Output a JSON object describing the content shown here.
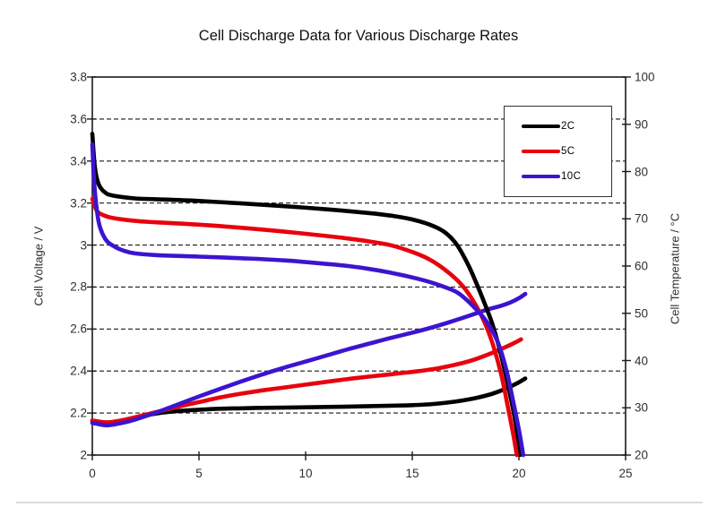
{
  "chart_data": {
    "type": "line",
    "title": "Cell Discharge Data for Various Discharge Rates",
    "grid": "horizontal-dashed",
    "x_axis": {
      "label": "",
      "range": [
        0,
        25
      ],
      "ticks": [
        {
          "label": "0",
          "value": 0
        },
        {
          "label": "5",
          "value": 5
        },
        {
          "label": "10",
          "value": 10
        },
        {
          "label": "15",
          "value": 15
        },
        {
          "label": "20",
          "value": 20
        },
        {
          "label": "25",
          "value": 25
        }
      ]
    },
    "y_left": {
      "label": "Cell Voltage / V",
      "range": [
        2,
        3.8
      ],
      "ticks": [
        {
          "label": "3.8",
          "value": 3.8
        },
        {
          "label": "3.6",
          "value": 3.6
        },
        {
          "label": "3.4",
          "value": 3.4
        },
        {
          "label": "3.2",
          "value": 3.2
        },
        {
          "label": "3",
          "value": 3.0
        },
        {
          "label": "2.8",
          "value": 2.8
        },
        {
          "label": "2.6",
          "value": 2.6
        },
        {
          "label": "2.4",
          "value": 2.4
        },
        {
          "label": "2.2",
          "value": 2.2
        },
        {
          "label": "2",
          "value": 2.0
        }
      ]
    },
    "y_right": {
      "label": "Cell Temperature / °C",
      "range": [
        20,
        100
      ],
      "ticks": [
        {
          "label": "100",
          "value": 100
        },
        {
          "label": "90",
          "value": 90
        },
        {
          "label": "80",
          "value": 80
        },
        {
          "label": "70",
          "value": 70
        },
        {
          "label": "60",
          "value": 60
        },
        {
          "label": "50",
          "value": 50
        },
        {
          "label": "40",
          "value": 40
        },
        {
          "label": "30",
          "value": 30
        },
        {
          "label": "20",
          "value": 20
        }
      ]
    },
    "legend": {
      "position": "top-right",
      "entries": [
        {
          "label": "2C",
          "color": "#000000"
        },
        {
          "label": "5C",
          "color": "#e8000d"
        },
        {
          "label": "10C",
          "color": "#3c14d0"
        }
      ]
    },
    "series": [
      {
        "name": "2C temperature",
        "axis": "right",
        "color": "#000000",
        "points": [
          [
            0,
            27.3
          ],
          [
            0.6,
            26.9
          ],
          [
            1.2,
            27.1
          ],
          [
            2,
            27.9
          ],
          [
            3,
            28.8
          ],
          [
            4,
            29.3
          ],
          [
            5,
            29.6
          ],
          [
            6,
            29.8
          ],
          [
            7,
            29.9
          ],
          [
            8,
            30
          ],
          [
            10,
            30.1
          ],
          [
            12,
            30.25
          ],
          [
            14,
            30.45
          ],
          [
            15,
            30.55
          ],
          [
            16,
            30.8
          ],
          [
            17,
            31.3
          ],
          [
            18,
            32.1
          ],
          [
            18.7,
            32.9
          ],
          [
            19.2,
            33.7
          ],
          [
            19.6,
            34.5
          ],
          [
            20,
            35.4
          ],
          [
            20.3,
            36.2
          ]
        ]
      },
      {
        "name": "5C temperature",
        "axis": "right",
        "color": "#e8000d",
        "points": [
          [
            0,
            27.3
          ],
          [
            0.6,
            26.9
          ],
          [
            1.2,
            27.2
          ],
          [
            2,
            28
          ],
          [
            3,
            29.1
          ],
          [
            4,
            30.2
          ],
          [
            5,
            31.2
          ],
          [
            6,
            32.2
          ],
          [
            7,
            33
          ],
          [
            8,
            33.7
          ],
          [
            9,
            34.3
          ],
          [
            10,
            34.9
          ],
          [
            11,
            35.5
          ],
          [
            12,
            36.1
          ],
          [
            13,
            36.6
          ],
          [
            14,
            37.1
          ],
          [
            15,
            37.6
          ],
          [
            16,
            38.2
          ],
          [
            17,
            39.1
          ],
          [
            17.7,
            39.9
          ],
          [
            18.4,
            41
          ],
          [
            19,
            42.1
          ],
          [
            19.5,
            43.1
          ],
          [
            19.9,
            44
          ],
          [
            20.1,
            44.5
          ]
        ]
      },
      {
        "name": "10C temperature",
        "axis": "right",
        "color": "#3c14d0",
        "points": [
          [
            0,
            26.8
          ],
          [
            0.7,
            26.3
          ],
          [
            1.4,
            26.8
          ],
          [
            2,
            27.5
          ],
          [
            3,
            29
          ],
          [
            4,
            30.7
          ],
          [
            5,
            32.4
          ],
          [
            6,
            34
          ],
          [
            7,
            35.6
          ],
          [
            8,
            37.1
          ],
          [
            9,
            38.5
          ],
          [
            10,
            39.8
          ],
          [
            11,
            41.1
          ],
          [
            12,
            42.4
          ],
          [
            13,
            43.6
          ],
          [
            14,
            44.8
          ],
          [
            15,
            45.9
          ],
          [
            16,
            47.1
          ],
          [
            17,
            48.5
          ],
          [
            18,
            50
          ],
          [
            18.6,
            50.9
          ],
          [
            19.1,
            51.5
          ],
          [
            19.6,
            52.3
          ],
          [
            20,
            53.2
          ],
          [
            20.3,
            54.1
          ]
        ]
      },
      {
        "name": "2C voltage",
        "axis": "left",
        "color": "#000000",
        "points": [
          [
            0,
            3.53
          ],
          [
            0.12,
            3.37
          ],
          [
            0.3,
            3.29
          ],
          [
            0.6,
            3.25
          ],
          [
            1,
            3.235
          ],
          [
            2,
            3.222
          ],
          [
            3,
            3.218
          ],
          [
            5,
            3.21
          ],
          [
            7,
            3.198
          ],
          [
            9,
            3.185
          ],
          [
            11,
            3.17
          ],
          [
            13,
            3.152
          ],
          [
            14,
            3.14
          ],
          [
            15,
            3.122
          ],
          [
            16,
            3.09
          ],
          [
            16.6,
            3.055
          ],
          [
            17.1,
            3.0
          ],
          [
            17.6,
            2.91
          ],
          [
            18,
            2.82
          ],
          [
            18.4,
            2.72
          ],
          [
            18.8,
            2.61
          ],
          [
            19.2,
            2.46
          ],
          [
            19.6,
            2.28
          ],
          [
            19.85,
            2.15
          ],
          [
            20,
            2.04
          ],
          [
            20.05,
            2.0
          ]
        ]
      },
      {
        "name": "5C voltage",
        "axis": "left",
        "color": "#e8000d",
        "points": [
          [
            0,
            3.22
          ],
          [
            0.2,
            3.165
          ],
          [
            0.5,
            3.143
          ],
          [
            1,
            3.128
          ],
          [
            2,
            3.115
          ],
          [
            3,
            3.108
          ],
          [
            5,
            3.097
          ],
          [
            7,
            3.082
          ],
          [
            9,
            3.064
          ],
          [
            11,
            3.043
          ],
          [
            12,
            3.031
          ],
          [
            13,
            3.017
          ],
          [
            14,
            2.999
          ],
          [
            15,
            2.967
          ],
          [
            15.7,
            2.937
          ],
          [
            16.3,
            2.9
          ],
          [
            17,
            2.843
          ],
          [
            17.5,
            2.788
          ],
          [
            18,
            2.71
          ],
          [
            18.4,
            2.63
          ],
          [
            18.8,
            2.52
          ],
          [
            19.2,
            2.37
          ],
          [
            19.5,
            2.22
          ],
          [
            19.75,
            2.09
          ],
          [
            19.9,
            2.0
          ]
        ]
      },
      {
        "name": "10C voltage",
        "axis": "left",
        "color": "#3c14d0",
        "points": [
          [
            0,
            3.48
          ],
          [
            0.1,
            3.28
          ],
          [
            0.3,
            3.11
          ],
          [
            0.6,
            3.03
          ],
          [
            1,
            2.995
          ],
          [
            1.5,
            2.972
          ],
          [
            2,
            2.96
          ],
          [
            3,
            2.952
          ],
          [
            5,
            2.945
          ],
          [
            7,
            2.937
          ],
          [
            9,
            2.927
          ],
          [
            11,
            2.91
          ],
          [
            12,
            2.9
          ],
          [
            13,
            2.886
          ],
          [
            14,
            2.868
          ],
          [
            15,
            2.846
          ],
          [
            16,
            2.818
          ],
          [
            17,
            2.78
          ],
          [
            17.5,
            2.743
          ],
          [
            18,
            2.693
          ],
          [
            18.5,
            2.633
          ],
          [
            19,
            2.54
          ],
          [
            19.4,
            2.41
          ],
          [
            19.7,
            2.27
          ],
          [
            20,
            2.12
          ],
          [
            20.2,
            2.0
          ]
        ]
      }
    ]
  },
  "colors": {
    "axis": "#1a1a1a",
    "grid": "#1a1a1a",
    "tick_text": "#2f2f2f",
    "series_black": "#000000",
    "series_red": "#e8000d",
    "series_blue": "#3c14d0"
  }
}
